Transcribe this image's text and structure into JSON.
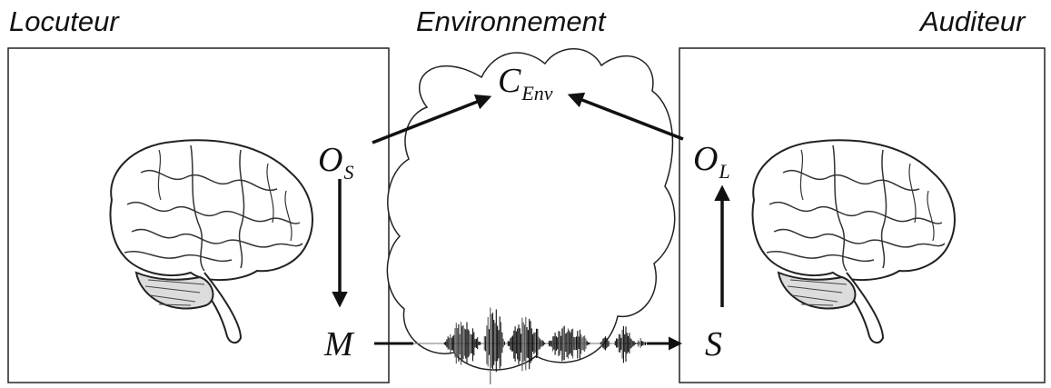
{
  "titles": {
    "speaker": "Locuteur",
    "environment": "Environnement",
    "listener": "Auditeur"
  },
  "variables": {
    "os": {
      "base": "O",
      "sub": "S"
    },
    "m": {
      "base": "M",
      "sub": ""
    },
    "ol": {
      "base": "O",
      "sub": "L"
    },
    "s": {
      "base": "S",
      "sub": ""
    },
    "cenv": {
      "base": "C",
      "sub": "Env"
    }
  },
  "colors": {
    "ink": "#111111",
    "frame": "#222222",
    "brain_stroke": "#333333"
  },
  "icons": {
    "speaker_brain": "brain-icon",
    "listener_brain": "brain-icon",
    "cloud": "cloud-icon",
    "waveform": "speech-waveform-icon"
  }
}
